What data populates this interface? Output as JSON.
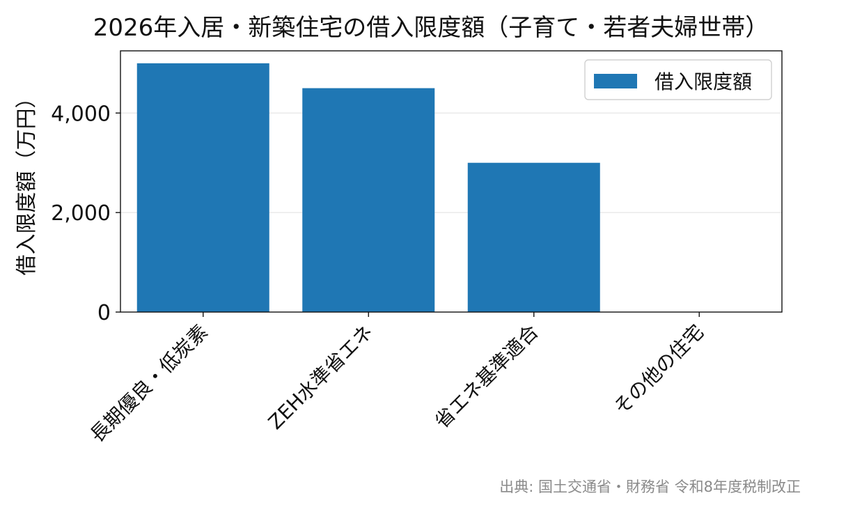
{
  "chart_data": {
    "type": "bar",
    "title": "2026年入居・新築住宅の借入限度額（子育て・若者夫婦世帯）",
    "xlabel": "",
    "ylabel": "借入限度額（万円）",
    "categories": [
      "長期優良・低炭素",
      "ZEH水準省エネ",
      "省エネ基準適合",
      "その他の住宅"
    ],
    "series": [
      {
        "name": "借入限度額",
        "values": [
          5000,
          4500,
          3000,
          0
        ],
        "color": "#1f77b4"
      }
    ],
    "ylim": [
      0,
      5250
    ],
    "yticks": [
      0,
      2000,
      4000
    ],
    "ytick_labels": [
      "0",
      "2,000",
      "4,000"
    ],
    "grid": "horizontal",
    "legend": "top-right"
  },
  "source_note": "出典: 国土交通省・財務省 令和8年度税制改正"
}
